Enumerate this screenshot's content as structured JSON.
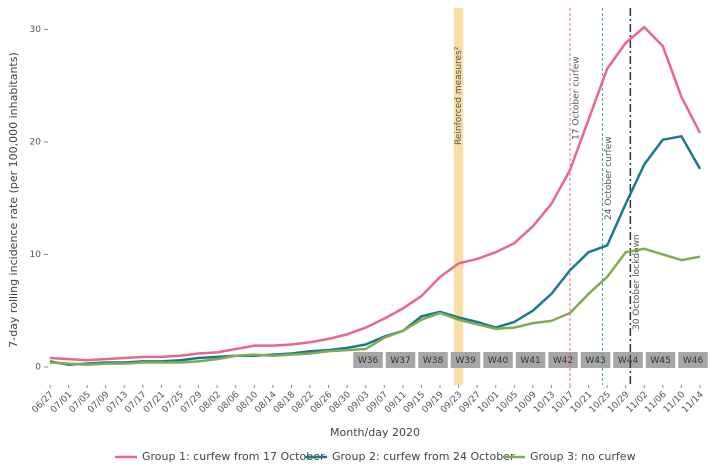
{
  "chart_data": {
    "type": "line",
    "y_label": "7-day rolling incidence rate (per 100,000 inhabitants)",
    "x_label": "Month/day 2020",
    "x": [
      "06/27",
      "07/01",
      "07/05",
      "07/09",
      "07/13",
      "07/17",
      "07/21",
      "07/25",
      "07/29",
      "08/02",
      "08/06",
      "08/10",
      "08/14",
      "08/18",
      "08/22",
      "08/26",
      "08/30",
      "09/03",
      "09/07",
      "09/11",
      "09/15",
      "09/19",
      "09/23",
      "09/27",
      "10/01",
      "10/05",
      "10/09",
      "10/13",
      "10/17",
      "10/21",
      "10/25",
      "10/29",
      "11/02",
      "11/06",
      "11/10",
      "11/14"
    ],
    "xlim": [
      "06/27",
      "11/14"
    ],
    "ylim": [
      -1.6,
      31.9
    ],
    "yticks": [
      0,
      10,
      20,
      30
    ],
    "series": [
      {
        "name": "Group 1: curfew from 17 October",
        "color": "#e8688a",
        "values": [
          0.8,
          0.7,
          0.6,
          0.7,
          0.8,
          0.9,
          0.9,
          1.0,
          1.2,
          1.3,
          1.6,
          1.9,
          1.9,
          2.0,
          2.2,
          2.5,
          2.9,
          3.5,
          4.3,
          5.2,
          6.3,
          8.0,
          9.2,
          9.6,
          10.2,
          11.0,
          12.5,
          14.5,
          17.5,
          22,
          26.5,
          28.8,
          30.2,
          28.5,
          24,
          20.8
        ]
      },
      {
        "name": "Group 2: curfew from 24 October",
        "color": "#1a7a8c",
        "values": [
          0.5,
          0.2,
          0.3,
          0.4,
          0.4,
          0.5,
          0.5,
          0.6,
          0.8,
          0.9,
          1.0,
          1.0,
          1.1,
          1.2,
          1.4,
          1.5,
          1.7,
          2.0,
          2.7,
          3.2,
          4.5,
          4.9,
          4.4,
          4.0,
          3.5,
          4.0,
          5.0,
          6.5,
          8.6,
          10.2,
          10.8,
          14.5,
          18,
          20.2,
          20.5,
          17.6
        ]
      },
      {
        "name": "Group 3: no curfew",
        "color": "#7fab55",
        "values": [
          0.4,
          0.3,
          0.2,
          0.3,
          0.3,
          0.4,
          0.4,
          0.4,
          0.5,
          0.7,
          1.0,
          1.1,
          1.0,
          1.1,
          1.2,
          1.4,
          1.5,
          1.6,
          2.6,
          3.2,
          4.2,
          4.8,
          4.2,
          3.8,
          3.4,
          3.5,
          3.9,
          4.1,
          4.8,
          6.5,
          8.0,
          10.2,
          10.5,
          10.0,
          9.5,
          9.8
        ]
      }
    ],
    "band": {
      "label": "Reinforced measures²",
      "x0": "09/22",
      "x1": "09/24",
      "color": "#f9dfa6"
    },
    "annotations": [
      {
        "label": "17 October curfew",
        "x": "10/17",
        "color": "#e8688a",
        "dash": "3,2"
      },
      {
        "label": "24 October curfew",
        "x": "10/24",
        "color": "#4aa6b8",
        "dash": "3,2"
      },
      {
        "label": "30 October lockdown",
        "x": "10/30",
        "color": "#333333",
        "dash": "8,3,2,3"
      }
    ],
    "weeks": [
      "W36",
      "W37",
      "W38",
      "W39",
      "W40",
      "W41",
      "W42",
      "W43",
      "W44",
      "W45",
      "W46"
    ],
    "week_box_color": "#a6a6a6"
  }
}
